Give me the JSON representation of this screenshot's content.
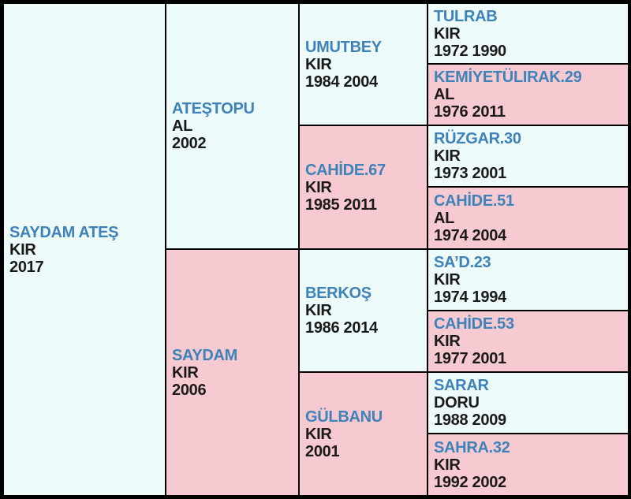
{
  "colors": {
    "stallion_bg": "#eefbfb",
    "mare_bg": "#f7c9d0",
    "name_text": "#3e82ba",
    "info_text": "#1a1a1a",
    "border": "#000000"
  },
  "horse": {
    "name": "SAYDAM ATEŞ",
    "color": "KIR",
    "years": "2017"
  },
  "sire": {
    "name": "ATEŞTOPU",
    "color": "AL",
    "years": "2002"
  },
  "dam": {
    "name": "SAYDAM",
    "color": "KIR",
    "years": "2006"
  },
  "sire_sire": {
    "name": "UMUTBEY",
    "color": "KIR",
    "years": "1984 2004"
  },
  "sire_dam": {
    "name": "CAHİDE.67",
    "color": "KIR",
    "years": "1985 2011"
  },
  "dam_sire": {
    "name": "BERKOŞ",
    "color": "KIR",
    "years": "1986 2014"
  },
  "dam_dam": {
    "name": "GÜLBANU",
    "color": "KIR",
    "years": "2001"
  },
  "gen4": [
    {
      "name": "TULRAB",
      "color": "KIR",
      "years": "1972 1990"
    },
    {
      "name": "KEMİYETÜLIRAK.29",
      "color": "AL",
      "years": "1976 2011"
    },
    {
      "name": "RÜZGAR.30",
      "color": "KIR",
      "years": "1973 2001"
    },
    {
      "name": "CAHİDE.51",
      "color": "AL",
      "years": "1974 2004"
    },
    {
      "name": "SA’D.23",
      "color": "KIR",
      "years": "1974 1994"
    },
    {
      "name": "CAHİDE.53",
      "color": "KIR",
      "years": "1977 2001"
    },
    {
      "name": "SARAR",
      "color": "DORU",
      "years": "1988 2009"
    },
    {
      "name": "SAHRA.32",
      "color": "KIR",
      "years": "1992 2002"
    }
  ]
}
